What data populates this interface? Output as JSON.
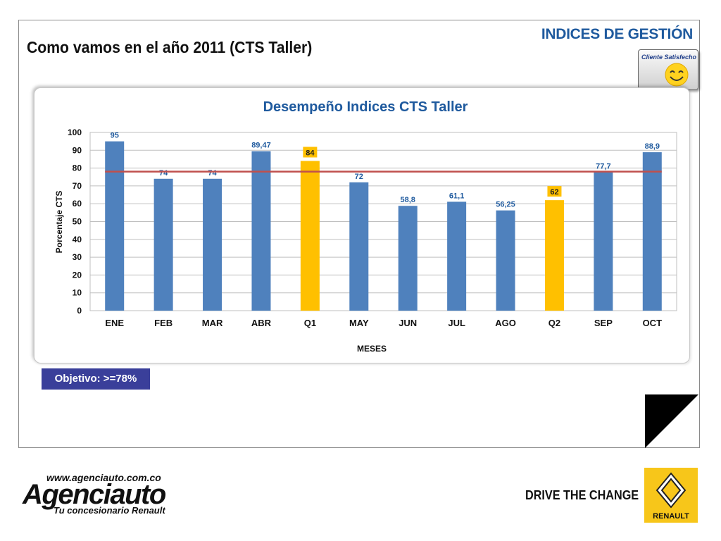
{
  "header": {
    "section_title": "INDICES DE GESTIÓN",
    "page_title": "Como vamos en el año 2011 (CTS Taller)",
    "badge_text": "Cliente Satisfecho"
  },
  "objective": {
    "label": "Objetivo: >=78%"
  },
  "footer": {
    "url": "www.agenciauto.com.co",
    "brand": "Agenciauto",
    "tagline": "Tu concesionario Renault",
    "slogan": "DRIVE THE CHANGE",
    "renault_label": "RENAULT"
  },
  "colors": {
    "monthly_bar": "#4f81bd",
    "quarter_bar": "#ffc000",
    "target_line": "#c0504d",
    "title_blue": "#1f5a9e",
    "objective_bg": "#3a3f9a"
  },
  "chart_data": {
    "type": "bar",
    "title": "Desempeño Indices CTS Taller",
    "xlabel": "MESES",
    "ylabel": "Porcentaje CTS",
    "categories": [
      "ENE",
      "FEB",
      "MAR",
      "ABR",
      "Q1",
      "MAY",
      "JUN",
      "JUL",
      "AGO",
      "Q2",
      "SEP",
      "OCT"
    ],
    "values": [
      95,
      74,
      74,
      89.47,
      84,
      72,
      58.8,
      61.1,
      56.25,
      62,
      77.7,
      88.9
    ],
    "value_labels": [
      "95",
      "74",
      "74",
      "89,47",
      "84",
      "72",
      "58,8",
      "61,1",
      "56,25",
      "62",
      "77,7",
      "88,9"
    ],
    "highlighted": [
      "Q1",
      "Q2"
    ],
    "target_line": 78,
    "ylim": [
      0,
      100
    ],
    "yticks": [
      0,
      10,
      20,
      30,
      40,
      50,
      60,
      70,
      80,
      90,
      100
    ],
    "grid": true,
    "legend": "none"
  }
}
